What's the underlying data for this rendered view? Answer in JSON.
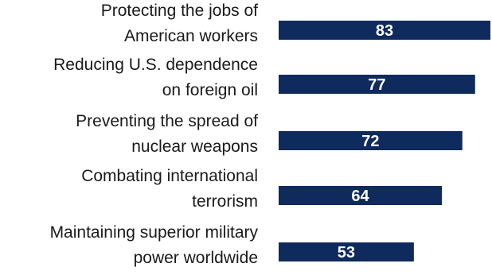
{
  "chart_data": {
    "type": "bar",
    "orientation": "horizontal",
    "categories": [
      [
        "Protecting the jobs of",
        "American workers"
      ],
      [
        "Reducing U.S. dependence",
        "on foreign oil"
      ],
      [
        "Preventing the spread of",
        "nuclear weapons"
      ],
      [
        "Combating international",
        "terrorism"
      ],
      [
        "Maintaining superior military",
        "power worldwide"
      ]
    ],
    "values": [
      83,
      77,
      72,
      64,
      53
    ],
    "value_labels": [
      "83",
      "77",
      "72",
      "64",
      "53"
    ],
    "title": "",
    "xlabel": "",
    "ylabel": "",
    "xlim": [
      0,
      83
    ],
    "grid": false,
    "legend": "none",
    "colors": {
      "bar": "#0f2a5c",
      "label_text": "#1a1a1a",
      "value_text": "#ffffff"
    }
  }
}
